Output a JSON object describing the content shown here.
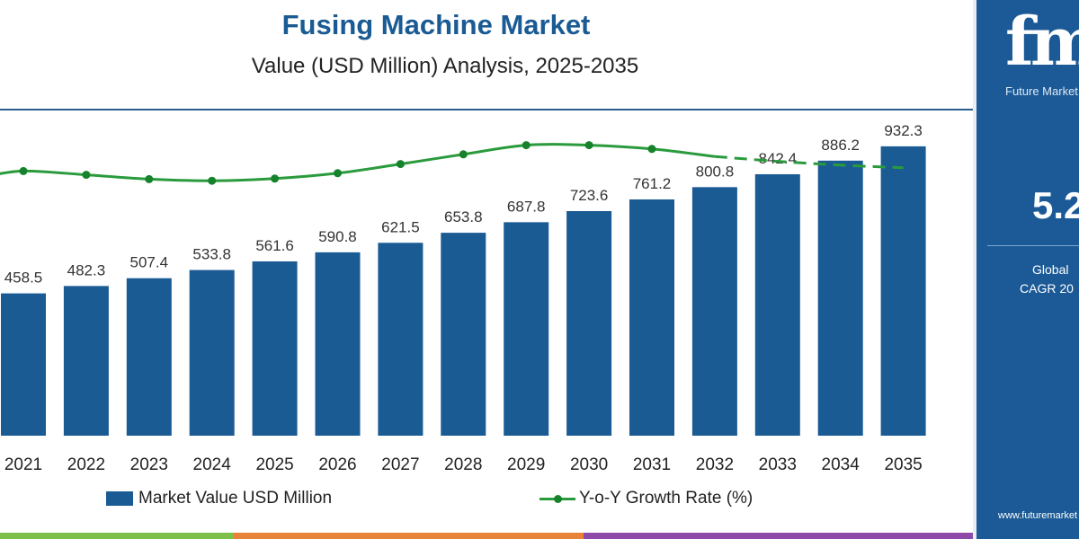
{
  "title": "Fusing Machine Market",
  "subtitle": "Value (USD Million) Analysis, 2025-2035",
  "colors": {
    "bar": "#1a5b94",
    "line": "#2a9b3c",
    "dot": "#16822c",
    "title": "#1a5b94",
    "side_panel": "#1b5a96"
  },
  "chart_data": {
    "type": "bar",
    "categories": [
      "2021",
      "2022",
      "2023",
      "2024",
      "2025",
      "2026",
      "2027",
      "2028",
      "2029",
      "2030",
      "2031",
      "2032",
      "2033",
      "2034",
      "2035"
    ],
    "series": [
      {
        "name": "Market Value USD Million",
        "type": "bar",
        "values": [
          458.5,
          482.3,
          507.4,
          533.8,
          561.6,
          590.8,
          621.5,
          653.8,
          687.8,
          723.6,
          761.2,
          800.8,
          842.4,
          886.2,
          932.3
        ],
        "labels": [
          "458.5",
          "482.3",
          "507.4",
          "533.8",
          "561.6",
          "590.8",
          "621.5",
          "653.8",
          "687.8",
          "723.6",
          "761.2",
          "800.8",
          "842.4",
          "886.2",
          "932.3"
        ]
      },
      {
        "name": "Y-o-Y Growth Rate (%)",
        "type": "line",
        "values": [
          5.16,
          5.09,
          5.01,
          4.98,
          5.02,
          5.12,
          5.29,
          5.47,
          5.64,
          5.64,
          5.57,
          5.43,
          5.34,
          5.27,
          5.22
        ],
        "dashed_from_index": 11
      }
    ],
    "ylim": [
      0,
      1000
    ],
    "growth_ylim": [
      3.5,
      6.5
    ],
    "legend_position": "bottom",
    "grid": false
  },
  "legend": {
    "bar_label": "Market Value USD Million",
    "line_label": "Y-o-Y Growth Rate (%)"
  },
  "side_panel": {
    "logo_mark": "fmi",
    "logo_text": "Future Market",
    "cagr_value": "5.2",
    "cagr_label_1": "Global",
    "cagr_label_2": "CAGR 20",
    "url": "www.futuremarket"
  }
}
